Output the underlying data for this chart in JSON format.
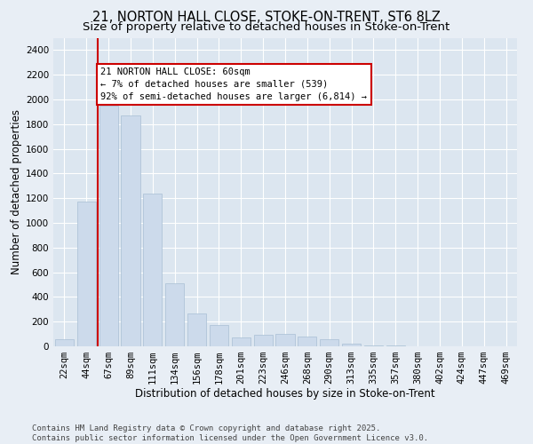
{
  "title1": "21, NORTON HALL CLOSE, STOKE-ON-TRENT, ST6 8LZ",
  "title2": "Size of property relative to detached houses in Stoke-on-Trent",
  "xlabel": "Distribution of detached houses by size in Stoke-on-Trent",
  "ylabel": "Number of detached properties",
  "categories": [
    "22sqm",
    "44sqm",
    "67sqm",
    "89sqm",
    "111sqm",
    "134sqm",
    "156sqm",
    "178sqm",
    "201sqm",
    "223sqm",
    "246sqm",
    "268sqm",
    "290sqm",
    "313sqm",
    "335sqm",
    "357sqm",
    "380sqm",
    "402sqm",
    "424sqm",
    "447sqm",
    "469sqm"
  ],
  "values": [
    60,
    1170,
    1950,
    1870,
    1240,
    510,
    265,
    170,
    70,
    95,
    100,
    80,
    60,
    20,
    10,
    5,
    3,
    2,
    2,
    1,
    2
  ],
  "bar_color": "#ccdaeb",
  "bar_edge_color": "#a8bfd4",
  "vline_x": 1.5,
  "vline_color": "#cc0000",
  "annotation_text": "21 NORTON HALL CLOSE: 60sqm\n← 7% of detached houses are smaller (539)\n92% of semi-detached houses are larger (6,814) →",
  "annotation_box_color": "#ffffff",
  "annotation_box_edge": "#cc0000",
  "bg_color": "#e8eef5",
  "plot_bg_color": "#dce6f0",
  "footer1": "Contains HM Land Registry data © Crown copyright and database right 2025.",
  "footer2": "Contains public sector information licensed under the Open Government Licence v3.0.",
  "ylim": [
    0,
    2500
  ],
  "yticks": [
    0,
    200,
    400,
    600,
    800,
    1000,
    1200,
    1400,
    1600,
    1800,
    2000,
    2200,
    2400
  ],
  "title1_fontsize": 10.5,
  "title2_fontsize": 9.5,
  "axis_fontsize": 8.5,
  "tick_fontsize": 7.5,
  "annotation_fontsize": 7.5,
  "footer_fontsize": 6.5
}
